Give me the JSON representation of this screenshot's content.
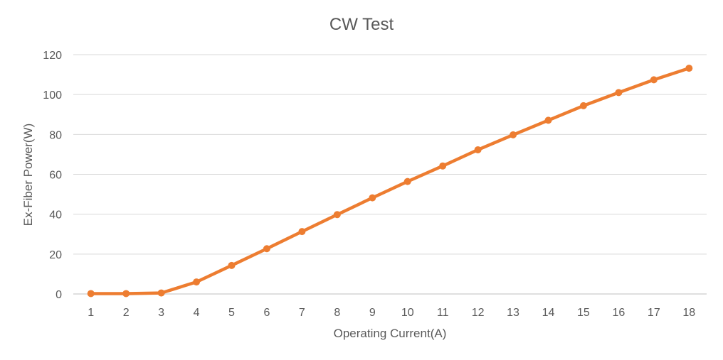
{
  "chart_data": {
    "type": "line",
    "title": "CW Test",
    "xlabel": "Operating Current(A)",
    "ylabel": "Ex-Fiber  Power(W)",
    "categories": [
      "1",
      "2",
      "3",
      "4",
      "5",
      "6",
      "7",
      "8",
      "9",
      "10",
      "11",
      "12",
      "13",
      "14",
      "15",
      "16",
      "17",
      "18"
    ],
    "series": [
      {
        "values": [
          0.2,
          0.2,
          0.5,
          6,
          14.3,
          22.7,
          31.3,
          39.8,
          48.2,
          56.4,
          64.2,
          72.3,
          79.8,
          87.1,
          94.4,
          101,
          107.4,
          113.2
        ],
        "color": "#ED7D31"
      }
    ],
    "ylim": [
      0,
      120
    ],
    "yticks": [
      "0",
      "20",
      "40",
      "60",
      "80",
      "100",
      "120"
    ],
    "grid": true,
    "legend": "none"
  }
}
